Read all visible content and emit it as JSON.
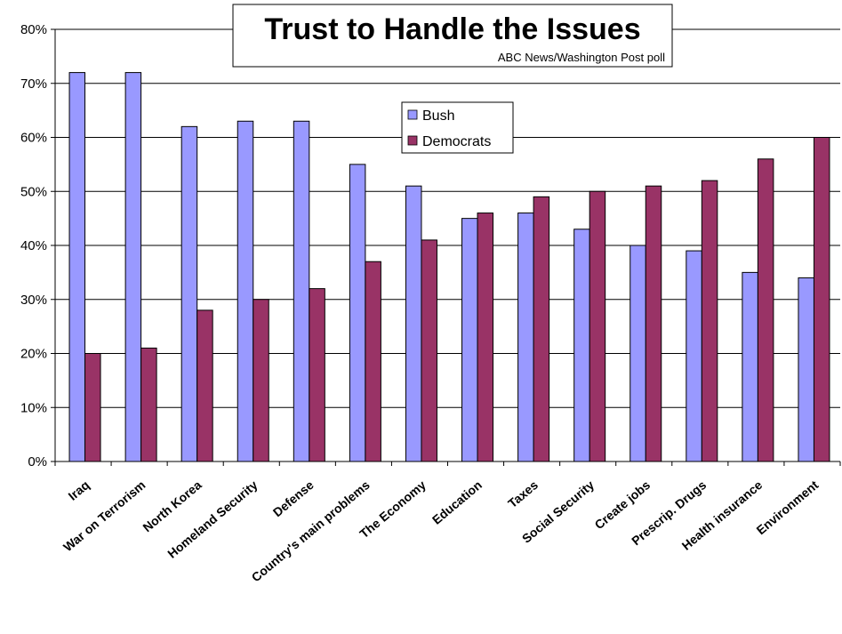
{
  "chart_data": {
    "type": "bar",
    "title": "Trust to Handle the Issues",
    "subtitle": "ABC News/Washington Post poll",
    "categories": [
      "Iraq",
      "War on Terrorism",
      "North Korea",
      "Homeland Security",
      "Defense",
      "Country's main problems",
      "The Economy",
      "Education",
      "Taxes",
      "Social Security",
      "Create jobs",
      "Prescrip. Drugs",
      "Health insurance",
      "Environment"
    ],
    "series": [
      {
        "name": "Bush",
        "color": "#9999ff",
        "values": [
          72,
          72,
          62,
          63,
          63,
          55,
          51,
          45,
          46,
          43,
          40,
          39,
          35,
          34
        ]
      },
      {
        "name": "Democrats",
        "color": "#993366",
        "values": [
          20,
          21,
          28,
          30,
          32,
          37,
          41,
          46,
          49,
          50,
          51,
          52,
          56,
          60
        ]
      }
    ],
    "ylim": [
      0,
      80
    ],
    "yticks": [
      "0%",
      "10%",
      "20%",
      "30%",
      "40%",
      "50%",
      "60%",
      "70%",
      "80%"
    ],
    "grid": true,
    "legend_position": "top-center"
  }
}
